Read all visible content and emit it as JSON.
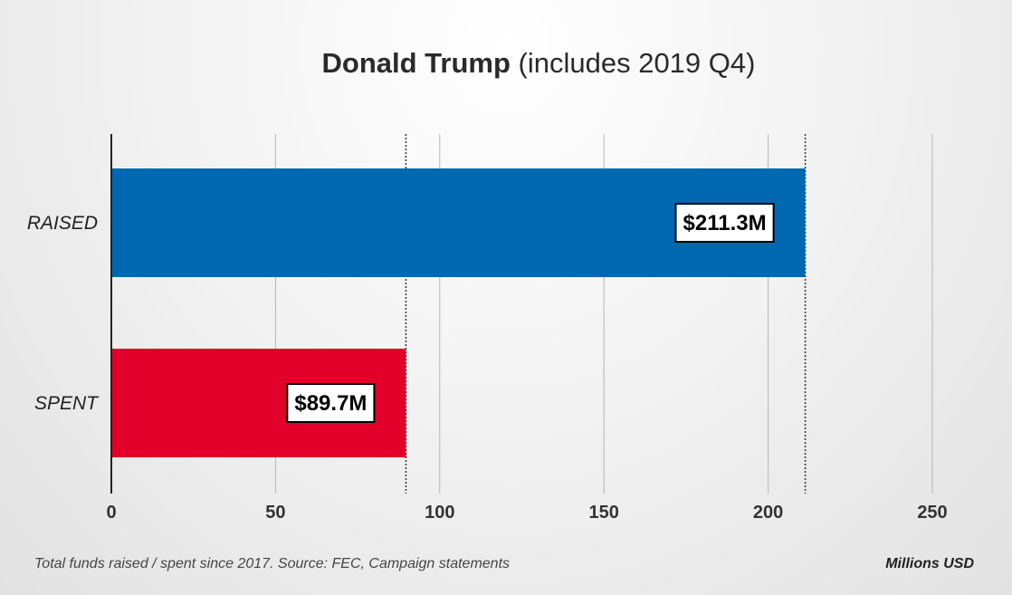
{
  "chart_data": {
    "type": "bar",
    "orientation": "horizontal",
    "title_bold": "Donald Trump",
    "title_rest": "(includes 2019 Q4)",
    "categories": [
      "RAISED",
      "SPENT"
    ],
    "values": [
      211.3,
      89.7
    ],
    "value_labels": [
      "$211.3M",
      "$89.7M"
    ],
    "colors": [
      "#0068b0",
      "#e2002a"
    ],
    "xlim": [
      0,
      250
    ],
    "xticks": [
      0,
      50,
      100,
      150,
      200,
      250
    ],
    "xlabel": "Millions USD",
    "grid": true,
    "reference_lines": [
      89.7,
      211.3
    ]
  },
  "footnote": "Total funds raised / spent since 2017. Source: FEC, Campaign statements"
}
